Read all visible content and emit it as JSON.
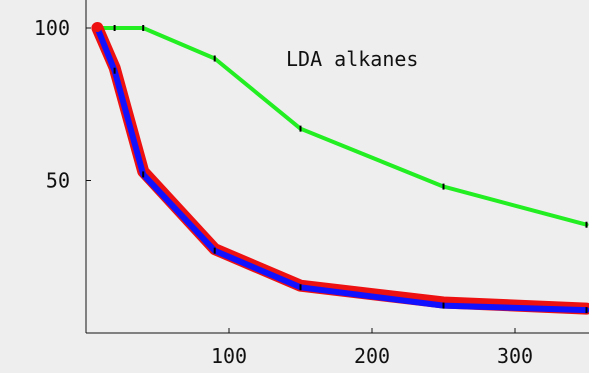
{
  "chart_data": {
    "type": "line",
    "title": "LDA alkanes",
    "xlabel": "",
    "ylabel": "",
    "xlim": [
      0,
      350
    ],
    "ylim": [
      0,
      100
    ],
    "x_ticks": [
      100,
      200,
      300
    ],
    "y_ticks": [
      50,
      100
    ],
    "grid": false,
    "background": "#eeeeee",
    "series": [
      {
        "color": "#22ee22",
        "x": [
          8,
          20,
          40,
          90,
          150,
          250,
          350
        ],
        "values": [
          100,
          100,
          100,
          90,
          67,
          48,
          35.5
        ]
      },
      {
        "color": "#ee1111",
        "x": [
          8,
          20,
          40,
          90,
          150,
          250,
          350
        ],
        "values": [
          100,
          87,
          53,
          27.5,
          15.5,
          10,
          8
        ]
      },
      {
        "color": "#1111ff",
        "x": [
          8,
          20,
          40,
          90,
          150,
          250,
          350
        ],
        "values": [
          100,
          86,
          52,
          27,
          15,
          9,
          7.5
        ]
      }
    ]
  }
}
